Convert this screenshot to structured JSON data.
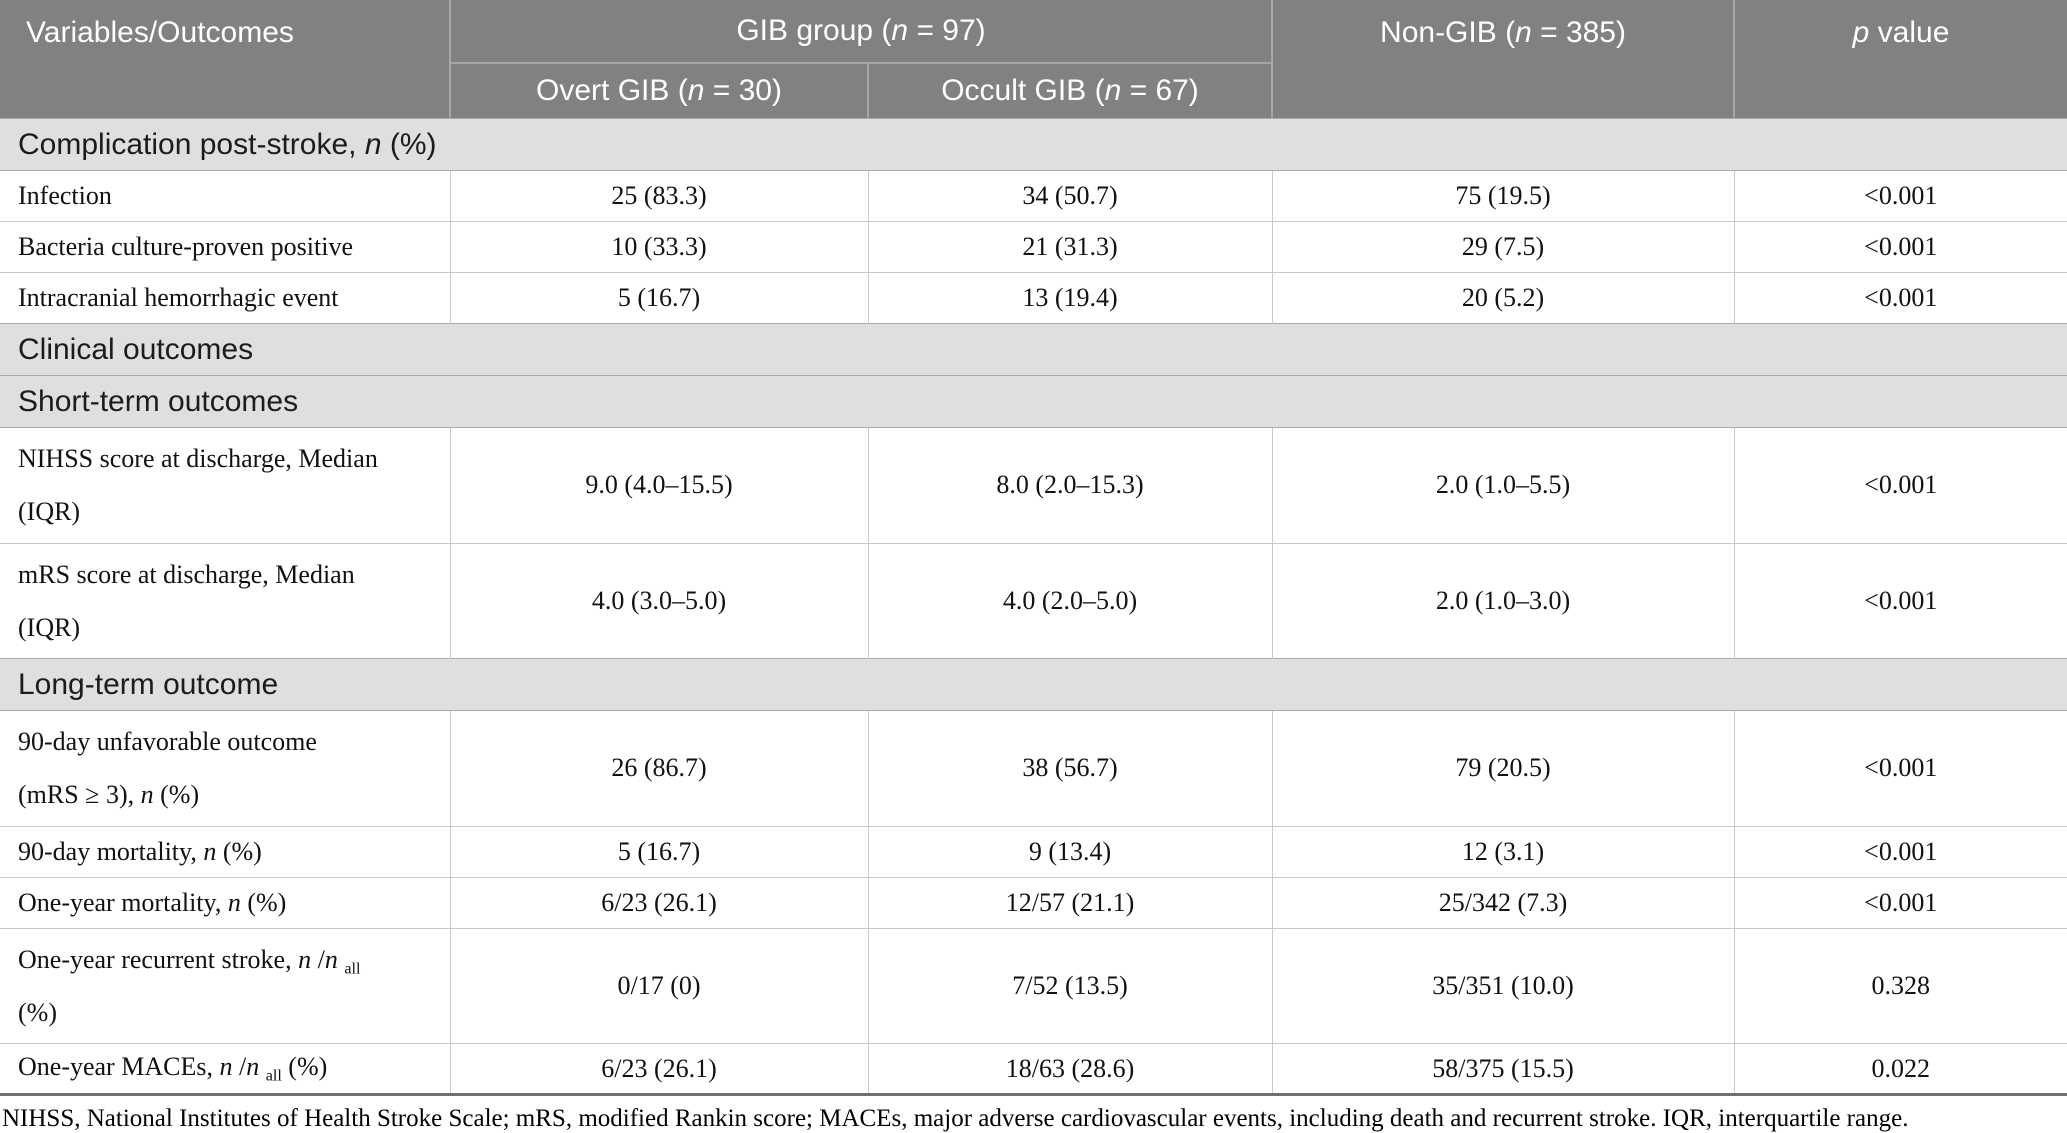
{
  "colors": {
    "header_bg": "#818181",
    "header_text": "#ffffff",
    "header_divider": "#a6a6a6",
    "section_bg": "#e0dede",
    "section_border": "#ababab",
    "row_border": "#c9c9c9",
    "bottom_border": "#6f6f6f"
  },
  "table": {
    "header": {
      "variables": [
        {
          "t": "Variables/Outcomes"
        }
      ],
      "gib_group": [
        {
          "t": "GIB group ("
        },
        {
          "t": "n",
          "s": "i"
        },
        {
          "t": " = 97)"
        }
      ],
      "overt": [
        {
          "t": "Overt GIB ("
        },
        {
          "t": "n",
          "s": "i"
        },
        {
          "t": " = 30)"
        }
      ],
      "occult": [
        {
          "t": "Occult GIB ("
        },
        {
          "t": "n",
          "s": "i"
        },
        {
          "t": " = 67)"
        }
      ],
      "non_gib": [
        {
          "t": "Non-GIB ("
        },
        {
          "t": "n",
          "s": "i"
        },
        {
          "t": " = 385)"
        }
      ],
      "p_value": [
        {
          "t": "p",
          "s": "i"
        },
        {
          "t": " value"
        }
      ]
    },
    "rows": [
      {
        "type": "section",
        "label": [
          {
            "t": "Complication post-stroke, "
          },
          {
            "t": "n",
            "s": "i"
          },
          {
            "t": " (%)"
          }
        ]
      },
      {
        "type": "data",
        "tall": false,
        "label": [
          {
            "t": "Infection"
          }
        ],
        "values": [
          "25 (83.3)",
          "34 (50.7)",
          "75 (19.5)",
          "<0.001"
        ]
      },
      {
        "type": "data",
        "tall": false,
        "label": [
          {
            "t": "Bacteria culture-proven positive"
          }
        ],
        "values": [
          "10 (33.3)",
          "21 (31.3)",
          "29 (7.5)",
          "<0.001"
        ]
      },
      {
        "type": "data",
        "tall": false,
        "label": [
          {
            "t": "Intracranial hemorrhagic event"
          }
        ],
        "values": [
          "5 (16.7)",
          "13 (19.4)",
          "20 (5.2)",
          "<0.001"
        ]
      },
      {
        "type": "section",
        "label": [
          {
            "t": "Clinical outcomes"
          }
        ]
      },
      {
        "type": "section",
        "label": [
          {
            "t": "Short-term outcomes"
          }
        ]
      },
      {
        "type": "data",
        "tall": true,
        "label": [
          {
            "t": "NIHSS score at discharge, Median"
          },
          {
            "s": "br"
          },
          {
            "t": "(IQR)"
          }
        ],
        "values": [
          "9.0 (4.0–15.5)",
          "8.0 (2.0–15.3)",
          "2.0 (1.0–5.5)",
          "<0.001"
        ]
      },
      {
        "type": "data",
        "tall": true,
        "label": [
          {
            "t": "mRS score at discharge, Median"
          },
          {
            "s": "br"
          },
          {
            "t": "(IQR)"
          }
        ],
        "values": [
          "4.0 (3.0–5.0)",
          "4.0 (2.0–5.0)",
          "2.0 (1.0–3.0)",
          "<0.001"
        ]
      },
      {
        "type": "section",
        "label": [
          {
            "t": "Long-term outcome"
          }
        ]
      },
      {
        "type": "data",
        "tall": true,
        "label": [
          {
            "t": "90-day unfavorable outcome"
          },
          {
            "s": "br"
          },
          {
            "t": "(mRS ≥ 3), "
          },
          {
            "t": "n",
            "s": "i"
          },
          {
            "t": " (%)"
          }
        ],
        "values": [
          "26 (86.7)",
          "38 (56.7)",
          "79 (20.5)",
          "<0.001"
        ]
      },
      {
        "type": "data",
        "tall": false,
        "label": [
          {
            "t": "90-day mortality, "
          },
          {
            "t": "n",
            "s": "i"
          },
          {
            "t": " (%)"
          }
        ],
        "values": [
          "5 (16.7)",
          "9 (13.4)",
          "12 (3.1)",
          "<0.001"
        ]
      },
      {
        "type": "data",
        "tall": false,
        "label": [
          {
            "t": "One-year mortality, "
          },
          {
            "t": "n",
            "s": "i"
          },
          {
            "t": " (%)"
          }
        ],
        "values": [
          "6/23 (26.1)",
          "12/57 (21.1)",
          "25/342 (7.3)",
          "<0.001"
        ]
      },
      {
        "type": "data",
        "tall": true,
        "label": [
          {
            "t": "One-year recurrent stroke, "
          },
          {
            "t": "n",
            "s": "i"
          },
          {
            "t": " /"
          },
          {
            "t": "n",
            "s": "i"
          },
          {
            "t": " "
          },
          {
            "t": "all",
            "s": "sub"
          },
          {
            "s": "br"
          },
          {
            "t": "(%)"
          }
        ],
        "values": [
          "0/17 (0)",
          "7/52 (13.5)",
          "35/351 (10.0)",
          "0.328"
        ]
      },
      {
        "type": "data",
        "tall": false,
        "label": [
          {
            "t": "One-year MACEs, "
          },
          {
            "t": "n",
            "s": "i"
          },
          {
            "t": " /"
          },
          {
            "t": "n",
            "s": "i"
          },
          {
            "t": " "
          },
          {
            "t": "all",
            "s": "sub"
          },
          {
            "t": " (%)"
          }
        ],
        "values": [
          "6/23 (26.1)",
          "18/63 (28.6)",
          "58/375 (15.5)",
          "0.022"
        ]
      }
    ],
    "footnote": "NIHSS, National Institutes of Health Stroke Scale; mRS, modified Rankin score; MACEs, major adverse cardiovascular events, including death and recurrent stroke. IQR, interquartile range."
  }
}
